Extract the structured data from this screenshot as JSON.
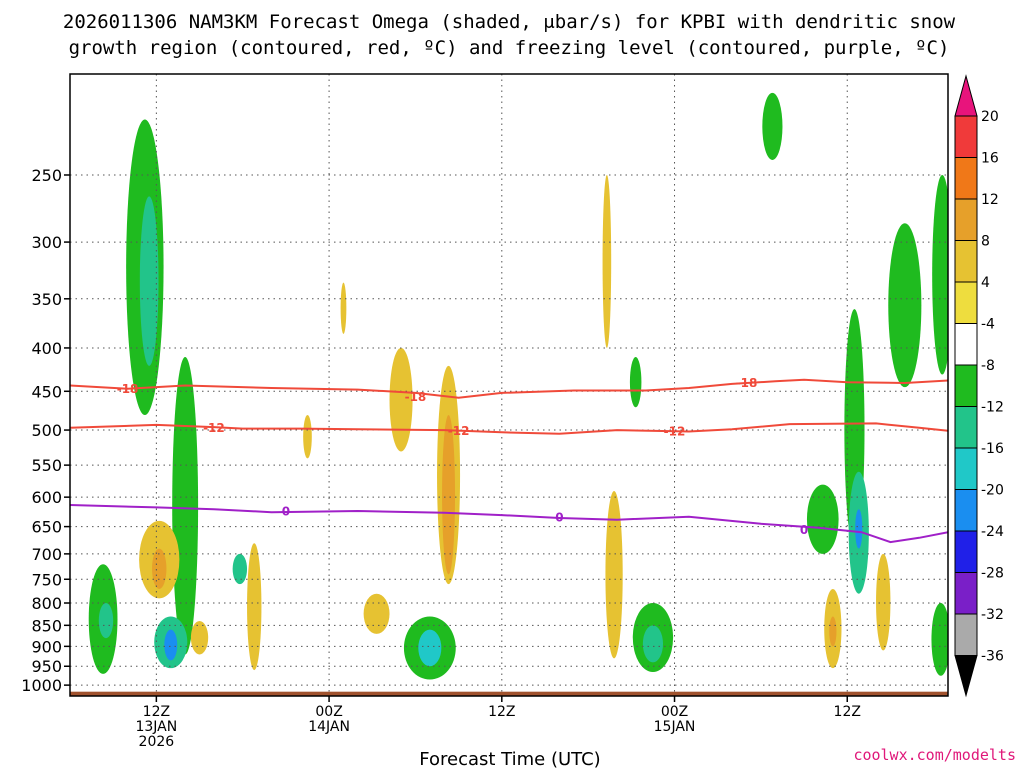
{
  "chart_data": {
    "type": "heatmap",
    "title_line1": "2026011306 NAM3KM Forecast Omega (shaded, μbar/s) for KPBI with dendritic snow",
    "title_line2": "growth region (contoured, red, ºC) and freezing level (contoured, purple, ºC)",
    "xlabel": "Forecast Time (UTC)",
    "ylabel": "",
    "credit": "coolwx.com/modelts",
    "yaxis": {
      "reversed": true,
      "ylim": [
        1030,
        190
      ],
      "ticks": [
        250,
        300,
        350,
        400,
        450,
        500,
        550,
        600,
        650,
        700,
        750,
        800,
        850,
        900,
        950,
        1000
      ],
      "tick_labels": [
        "250",
        "300",
        "350",
        "400",
        "450",
        "500",
        "550",
        "600",
        "650",
        "700",
        "750",
        "800",
        "850",
        "900",
        "950",
        "1000"
      ]
    },
    "xaxis": {
      "xlim": [
        0,
        61
      ],
      "ticks": [
        6,
        18,
        30,
        42,
        54
      ],
      "tick_labels": [
        [
          "12Z",
          "13JAN",
          "2026"
        ],
        [
          "00Z",
          "14JAN"
        ],
        [
          "12Z"
        ],
        [
          "00Z",
          "15JAN"
        ],
        [
          "12Z"
        ]
      ]
    },
    "colorbar": {
      "levels": [
        20,
        16,
        12,
        8,
        4,
        -4,
        -8,
        -12,
        -16,
        -20,
        -24,
        -28,
        -32,
        -36
      ],
      "labels": [
        "20",
        "16",
        "12",
        "8",
        "4",
        "-4",
        "-8",
        "-12",
        "-16",
        "-20",
        "-24",
        "-28",
        "-32",
        "-36"
      ],
      "colors": [
        "#f03a3a",
        "#f07818",
        "#e6a02a",
        "#e6c232",
        "#eedd3e",
        "#ffffff",
        "#1fbb1f",
        "#22c48a",
        "#20c8c8",
        "#1a8ef0",
        "#2020e8",
        "#7a1fc8",
        "#a810c8",
        "#aaaaaa"
      ],
      "top_arrow_color": "#e8147c",
      "bottom_arrow_color": "#000000"
    },
    "contours": [
      {
        "name": "-18",
        "color": "#f04a3a",
        "label": "-18",
        "points": [
          [
            0,
            443
          ],
          [
            4,
            447
          ],
          [
            8,
            443
          ],
          [
            14,
            446
          ],
          [
            20,
            448
          ],
          [
            24,
            452
          ],
          [
            27,
            458
          ],
          [
            30,
            452
          ],
          [
            35,
            449
          ],
          [
            40,
            449
          ],
          [
            43,
            446
          ],
          [
            46,
            441
          ],
          [
            49,
            438
          ],
          [
            51,
            436
          ],
          [
            54,
            439
          ],
          [
            58,
            440
          ],
          [
            61,
            437
          ]
        ],
        "label_at": [
          [
            4,
            447
          ],
          [
            24,
            457
          ],
          [
            47,
            440
          ]
        ]
      },
      {
        "name": "-12",
        "color": "#f04a3a",
        "label": "-12",
        "points": [
          [
            0,
            497
          ],
          [
            6,
            493
          ],
          [
            10,
            496
          ],
          [
            12,
            498
          ],
          [
            16,
            498
          ],
          [
            20,
            499
          ],
          [
            26,
            500
          ],
          [
            30,
            503
          ],
          [
            34,
            505
          ],
          [
            38,
            500
          ],
          [
            43,
            502
          ],
          [
            46,
            499
          ],
          [
            50,
            492
          ],
          [
            56,
            491
          ],
          [
            59,
            497
          ],
          [
            61,
            501
          ]
        ],
        "label_at": [
          [
            10,
            497
          ],
          [
            27,
            501
          ],
          [
            42,
            502
          ]
        ]
      },
      {
        "name": "0",
        "color": "#a020c8",
        "label": "0",
        "points": [
          [
            0,
            613
          ],
          [
            6,
            617
          ],
          [
            10,
            620
          ],
          [
            14,
            625
          ],
          [
            20,
            623
          ],
          [
            26,
            626
          ],
          [
            30,
            630
          ],
          [
            34,
            635
          ],
          [
            38,
            638
          ],
          [
            43,
            633
          ],
          [
            48,
            645
          ],
          [
            52,
            652
          ],
          [
            55,
            660
          ],
          [
            57,
            678
          ],
          [
            59,
            670
          ],
          [
            61,
            660
          ]
        ],
        "label_at": [
          [
            15,
            624
          ],
          [
            34,
            634
          ],
          [
            51,
            656
          ]
        ]
      }
    ],
    "omega_regions": [
      {
        "value": -8,
        "t_center": 5.2,
        "p_top": 215,
        "p_bottom": 480,
        "width_hr": 2.6
      },
      {
        "value": -12,
        "t_center": 5.5,
        "p_top": 265,
        "p_bottom": 420,
        "width_hr": 1.3
      },
      {
        "value": -8,
        "t_center": 8.0,
        "p_top": 410,
        "p_bottom": 920,
        "width_hr": 1.8
      },
      {
        "value": 8,
        "t_center": 6.2,
        "p_top": 640,
        "p_bottom": 790,
        "width_hr": 2.8
      },
      {
        "value": 12,
        "t_center": 6.2,
        "p_top": 690,
        "p_bottom": 770,
        "width_hr": 1.0
      },
      {
        "value": -12,
        "t_center": 7.0,
        "p_top": 830,
        "p_bottom": 955,
        "width_hr": 2.3
      },
      {
        "value": -20,
        "t_center": 7.0,
        "p_top": 860,
        "p_bottom": 935,
        "width_hr": 0.9
      },
      {
        "value": -8,
        "t_center": 2.3,
        "p_top": 720,
        "p_bottom": 970,
        "width_hr": 2.0
      },
      {
        "value": -12,
        "t_center": 2.5,
        "p_top": 800,
        "p_bottom": 880,
        "width_hr": 1.0
      },
      {
        "value": 8,
        "t_center": 12.8,
        "p_top": 680,
        "p_bottom": 960,
        "width_hr": 1.0
      },
      {
        "value": -12,
        "t_center": 11.8,
        "p_top": 700,
        "p_bottom": 760,
        "width_hr": 1.0
      },
      {
        "value": 8,
        "t_center": 9.0,
        "p_top": 840,
        "p_bottom": 920,
        "width_hr": 1.2
      },
      {
        "value": 8,
        "t_center": 23.0,
        "p_top": 400,
        "p_bottom": 530,
        "width_hr": 1.6
      },
      {
        "value": 8,
        "t_center": 26.3,
        "p_top": 420,
        "p_bottom": 760,
        "width_hr": 1.6
      },
      {
        "value": 12,
        "t_center": 26.3,
        "p_top": 480,
        "p_bottom": 740,
        "width_hr": 0.9
      },
      {
        "value": 8,
        "t_center": 21.3,
        "p_top": 780,
        "p_bottom": 870,
        "width_hr": 1.8
      },
      {
        "value": -8,
        "t_center": 25.0,
        "p_top": 830,
        "p_bottom": 985,
        "width_hr": 3.6
      },
      {
        "value": -16,
        "t_center": 25.0,
        "p_top": 860,
        "p_bottom": 950,
        "width_hr": 1.6
      },
      {
        "value": 8,
        "t_center": 16.5,
        "p_top": 480,
        "p_bottom": 540,
        "width_hr": 0.6
      },
      {
        "value": 8,
        "t_center": 19.0,
        "p_top": 335,
        "p_bottom": 385,
        "width_hr": 0.4
      },
      {
        "value": 8,
        "t_center": 37.3,
        "p_top": 250,
        "p_bottom": 400,
        "width_hr": 0.6
      },
      {
        "value": -8,
        "t_center": 39.3,
        "p_top": 410,
        "p_bottom": 470,
        "width_hr": 0.8
      },
      {
        "value": 8,
        "t_center": 37.8,
        "p_top": 590,
        "p_bottom": 930,
        "width_hr": 1.2
      },
      {
        "value": -8,
        "t_center": 40.5,
        "p_top": 800,
        "p_bottom": 965,
        "width_hr": 2.8
      },
      {
        "value": -12,
        "t_center": 40.5,
        "p_top": 850,
        "p_bottom": 940,
        "width_hr": 1.4
      },
      {
        "value": -8,
        "t_center": 48.8,
        "p_top": 200,
        "p_bottom": 240,
        "width_hr": 1.4
      },
      {
        "value": -8,
        "t_center": 54.5,
        "p_top": 360,
        "p_bottom": 690,
        "width_hr": 1.4
      },
      {
        "value": -8,
        "t_center": 52.3,
        "p_top": 580,
        "p_bottom": 700,
        "width_hr": 2.2
      },
      {
        "value": -12,
        "t_center": 54.8,
        "p_top": 560,
        "p_bottom": 780,
        "width_hr": 1.4
      },
      {
        "value": -20,
        "t_center": 54.8,
        "p_top": 620,
        "p_bottom": 690,
        "width_hr": 0.5
      },
      {
        "value": 8,
        "t_center": 53.0,
        "p_top": 770,
        "p_bottom": 955,
        "width_hr": 1.2
      },
      {
        "value": 12,
        "t_center": 53.0,
        "p_top": 830,
        "p_bottom": 900,
        "width_hr": 0.5
      },
      {
        "value": 8,
        "t_center": 56.5,
        "p_top": 700,
        "p_bottom": 910,
        "width_hr": 1.0
      },
      {
        "value": -8,
        "t_center": 58.0,
        "p_top": 285,
        "p_bottom": 445,
        "width_hr": 2.3
      },
      {
        "value": -8,
        "t_center": 60.6,
        "p_top": 250,
        "p_bottom": 430,
        "width_hr": 1.4
      },
      {
        "value": -8,
        "t_center": 60.5,
        "p_top": 800,
        "p_bottom": 975,
        "width_hr": 1.3
      }
    ],
    "terrain_color": "#a0522d",
    "surface_pressure": 1018
  }
}
